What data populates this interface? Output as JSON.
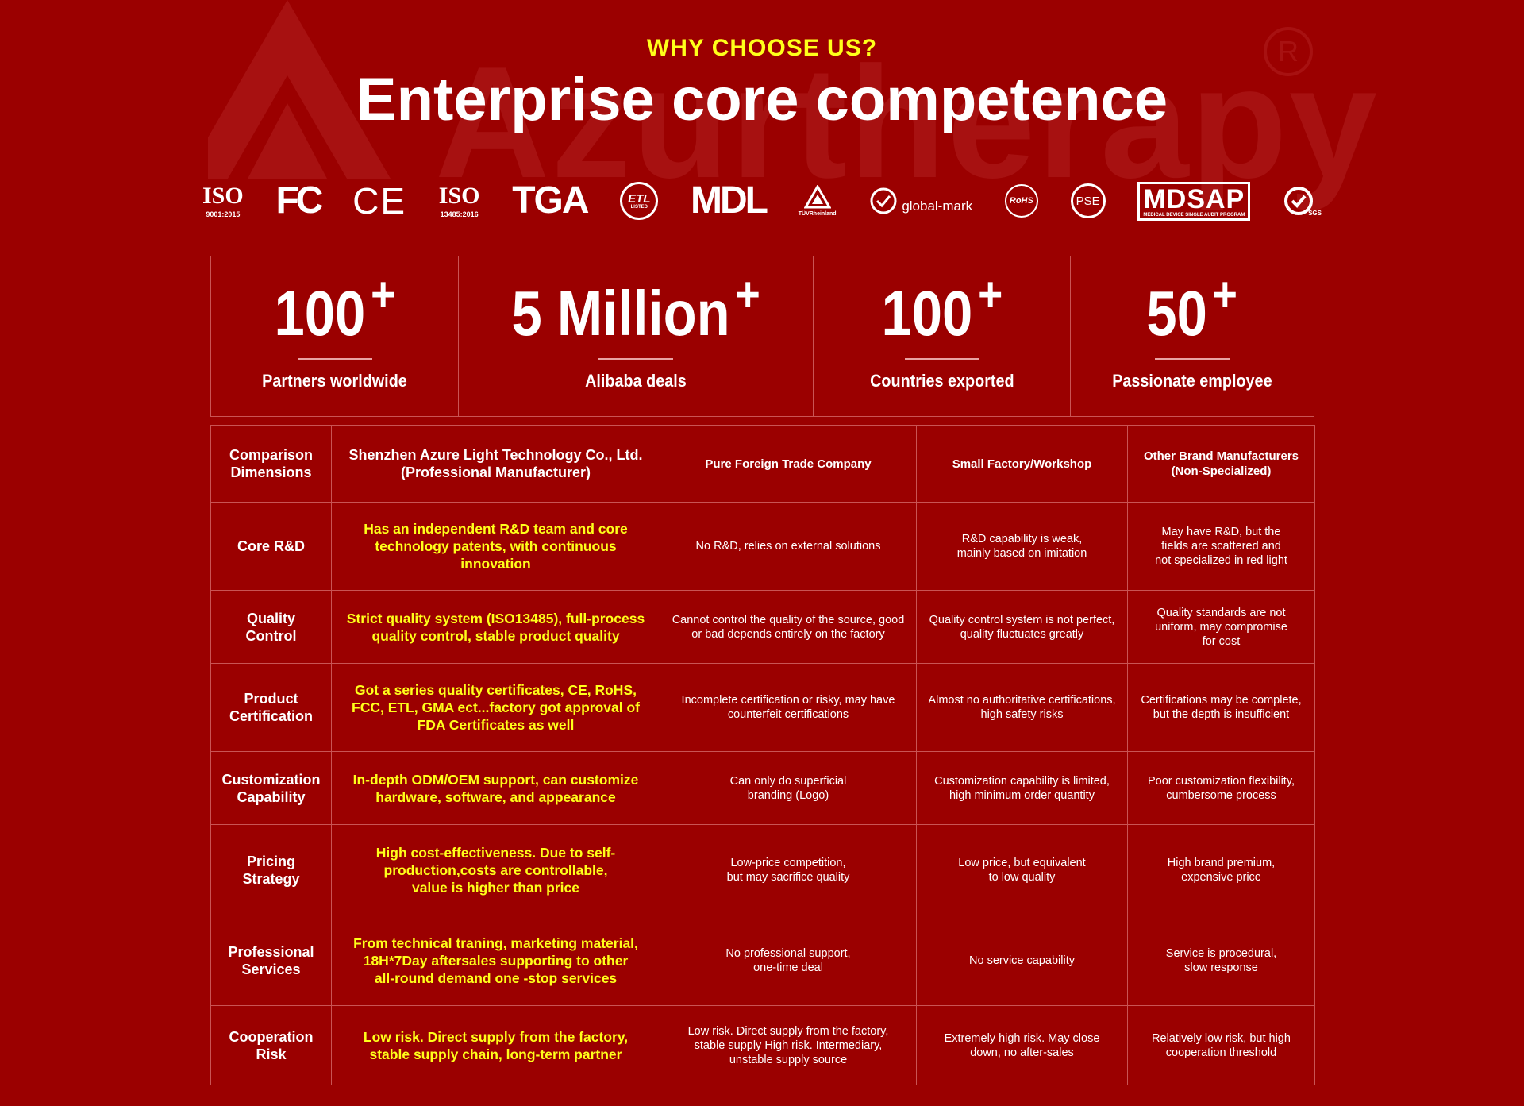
{
  "watermark": {
    "brand": "Azurtherapy",
    "registered": "R"
  },
  "header": {
    "kicker": "WHY CHOOSE US?",
    "title": "Enterprise core competence"
  },
  "certifications": [
    {
      "name": "iso-9001-icon",
      "main": "ISO",
      "sub": "9001:2015"
    },
    {
      "name": "fcc-icon",
      "main": "FC"
    },
    {
      "name": "ce-icon",
      "main": "CE"
    },
    {
      "name": "iso-13485-icon",
      "main": "ISO",
      "sub": "13485:2016"
    },
    {
      "name": "tga-icon",
      "main": "TGA"
    },
    {
      "name": "etl-icon",
      "main": "ETL",
      "sub": "LISTED"
    },
    {
      "name": "mdl-icon",
      "main": "MDL"
    },
    {
      "name": "tuv-rheinland-icon",
      "main": "TÜVRheinland"
    },
    {
      "name": "global-mark-icon",
      "main": "global-mark"
    },
    {
      "name": "rohs-icon",
      "main": "RoHS"
    },
    {
      "name": "pse-icon",
      "main": "PSE"
    },
    {
      "name": "mdsap-icon",
      "main": "MDSAP",
      "sub": "MEDICAL DEVICE SINGLE AUDIT PROGRAM"
    },
    {
      "name": "sgs-icon",
      "main": "SGS"
    }
  ],
  "stats": [
    {
      "number": "100",
      "plus": "+",
      "label": "Partners worldwide"
    },
    {
      "number": "5 Million",
      "plus": "+",
      "label": "Alibaba deals"
    },
    {
      "number": "100",
      "plus": "+",
      "label": "Countries exported"
    },
    {
      "number": "50",
      "plus": "+",
      "label": "Passionate employee"
    }
  ],
  "table": {
    "headers": [
      "Comparison\nDimensions",
      "Shenzhen Azure Light Technology Co., Ltd.\n(Professional Manufacturer)",
      "Pure Foreign Trade Company",
      "Small Factory/Workshop",
      "Other Brand Manufacturers\n(Non-Specialized)"
    ],
    "rows": [
      {
        "dimension": "Core R&D",
        "ours": "Has an independent R&D team and core\ntechnology patents, with continuous\ninnovation",
        "foreign": "No R&D, relies on external solutions",
        "small": "R&D capability is weak,\nmainly based on imitation",
        "other": "May have R&D, but the\nfields are scattered and\nnot specialized in red light"
      },
      {
        "dimension": "Quality\nControl",
        "ours": "Strict quality system (ISO13485), full-process\nquality control, stable product quality",
        "foreign": "Cannot control the quality of the source, good\nor bad depends entirely on the factory",
        "small": "Quality control system is not perfect,\nquality fluctuates greatly",
        "other": "Quality standards are not\nuniform, may compromise\nfor cost"
      },
      {
        "dimension": "Product\nCertification",
        "ours": "Got a series quality certificates, CE, RoHS,\nFCC, ETL, GMA ect...factory got approval of\nFDA Certificates as well",
        "foreign": "Incomplete certification or risky, may have\ncounterfeit certifications",
        "small": "Almost no authoritative certifications,\nhigh safety risks",
        "other": "Certifications may be complete,\nbut the depth is insufficient"
      },
      {
        "dimension": "Customization\nCapability",
        "ours": "In-depth ODM/OEM support, can customize\nhardware, software, and appearance",
        "foreign": "Can only do superficial\nbranding (Logo)",
        "small": "Customization capability is limited,\nhigh minimum order quantity",
        "other": "Poor customization flexibility,\ncumbersome process"
      },
      {
        "dimension": "Pricing\nStrategy",
        "ours": "High cost-effectiveness. Due to self-\nproduction,costs are controllable,\nvalue is higher than price",
        "foreign": "Low-price competition,\nbut may sacrifice quality",
        "small": "Low price, but equivalent\nto low quality",
        "other": "High brand premium,\nexpensive price"
      },
      {
        "dimension": "Professional\nServices",
        "ours": "From technical traning, marketing material,\n18H*7Day aftersales supporting to other\nall-round demand one -stop services",
        "foreign": "No professional support,\none-time deal",
        "small": "No service capability",
        "other": "Service is procedural,\nslow response"
      },
      {
        "dimension": "Cooperation\nRisk",
        "ours": "Low risk. Direct supply from the factory,\nstable supply chain, long-term partner",
        "foreign": "Low risk. Direct supply from the factory,\nstable supply High risk. Intermediary,\nunstable supply source",
        "small": "Extremely high risk. May close\ndown, no after-sales",
        "other": "Relatively low risk, but high\ncooperation threshold"
      }
    ]
  }
}
